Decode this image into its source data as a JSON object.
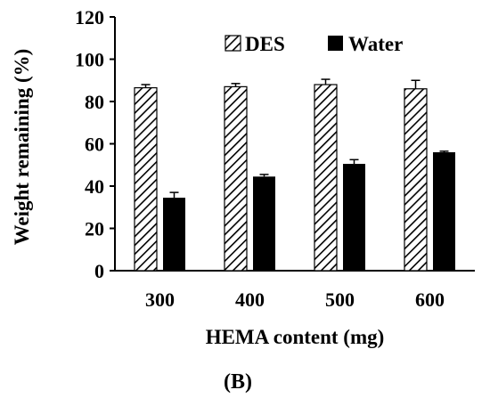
{
  "chart_data": {
    "type": "bar",
    "categories": [
      "300",
      "400",
      "500",
      "600"
    ],
    "series": [
      {
        "name": "DES",
        "values": [
          86.5,
          87.0,
          88.0,
          86.0
        ],
        "errors": [
          1.5,
          1.5,
          2.5,
          4.0
        ],
        "pattern": "hatched"
      },
      {
        "name": "Water",
        "values": [
          34.5,
          44.5,
          50.5,
          56.0
        ],
        "errors": [
          2.5,
          1.0,
          2.0,
          0.5
        ],
        "pattern": "solid"
      }
    ],
    "xlabel": "HEMA content (mg)",
    "ylabel": "Weight remaining (%)",
    "ylim": [
      0,
      120
    ],
    "yticks": [
      "0",
      "20",
      "40",
      "60",
      "80",
      "100",
      "120"
    ],
    "grid": false,
    "legend_position": "top-right",
    "panel_label": "(B)",
    "colors": {
      "bar_fill": "#000000",
      "hatch": "#000000",
      "background": "#ffffff"
    }
  }
}
